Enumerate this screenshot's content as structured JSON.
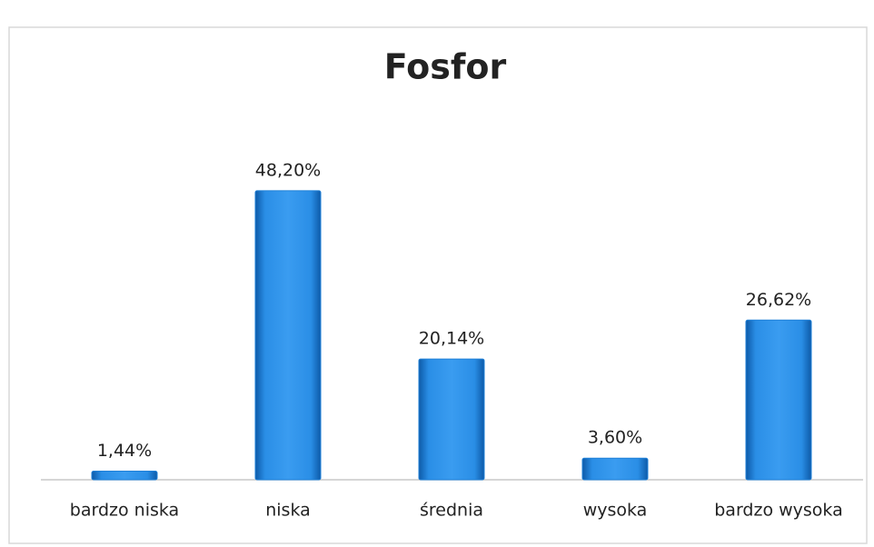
{
  "chart_data": {
    "type": "bar",
    "title": "Fosfor",
    "categories": [
      "bardzo niska",
      "niska",
      "średnia",
      "wysoka",
      "bardzo wysoka"
    ],
    "values": [
      1.44,
      48.2,
      20.14,
      3.6,
      26.62
    ],
    "value_labels": [
      "1,44%",
      "48,20%",
      "20,14%",
      "3,60%",
      "26,62%"
    ],
    "color": "#1f80d8"
  }
}
